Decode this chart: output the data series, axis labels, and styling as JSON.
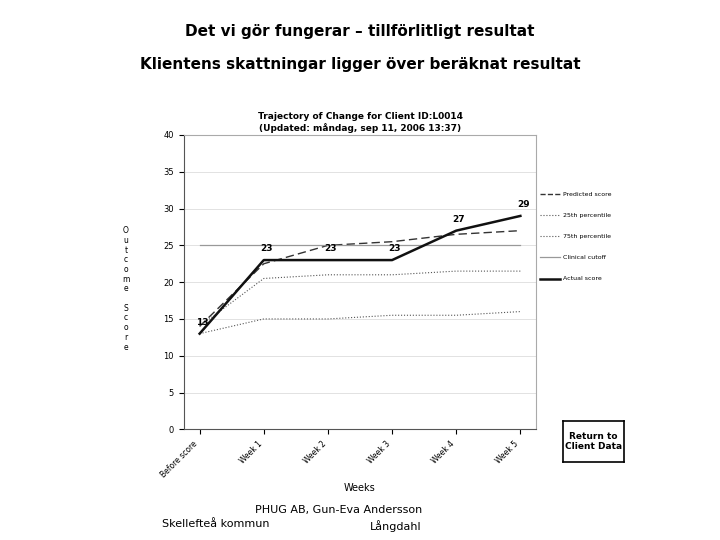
{
  "title_line1": "Det vi gör fungerar – tillförlitligt resultat",
  "title_line2": "Klientens skattningar ligger över beräknat resultat",
  "footer_left": "Skellefteå kommun",
  "footer_right_line1": "PHUG AB, Gun-Eva Andersson",
  "footer_right_line2": "Långdahl",
  "chart_title": "Trajectory of Change for Client ID:L0014",
  "chart_subtitle": "(Updated: måndag, sep 11, 2006 13:37)",
  "xlabel": "Weeks",
  "x_labels": [
    "Before score",
    "Week 1",
    "Week 2",
    "Week 3",
    "Week 4",
    "Week 5"
  ],
  "x_values": [
    0,
    1,
    2,
    3,
    4,
    5
  ],
  "predicted_score": [
    14.0,
    22.5,
    25.0,
    25.5,
    26.5,
    27.0
  ],
  "p25": [
    13.0,
    15.0,
    15.0,
    15.5,
    15.5,
    16.0
  ],
  "p75": [
    14.0,
    20.5,
    21.0,
    21.0,
    21.5,
    21.5
  ],
  "clinical_cutoff": [
    25,
    25,
    25,
    25,
    25,
    25
  ],
  "actual_score": [
    13,
    23,
    23,
    23,
    27,
    29
  ],
  "actual_labels": [
    "13",
    "23",
    "23",
    "23",
    "27",
    "29"
  ],
  "ylim": [
    0,
    40
  ],
  "yticks": [
    0,
    5,
    10,
    15,
    20,
    25,
    30,
    35,
    40
  ],
  "outer_bg": "#b8b8b8",
  "inner_bg": "#d8d8d8",
  "plot_bg": "#ffffff",
  "return_button_text": "Return to\nClient Data",
  "legend_labels": [
    "Predicted score",
    "25th percentile",
    "75th percentile",
    "Clinical cutoff",
    "Actual score"
  ]
}
